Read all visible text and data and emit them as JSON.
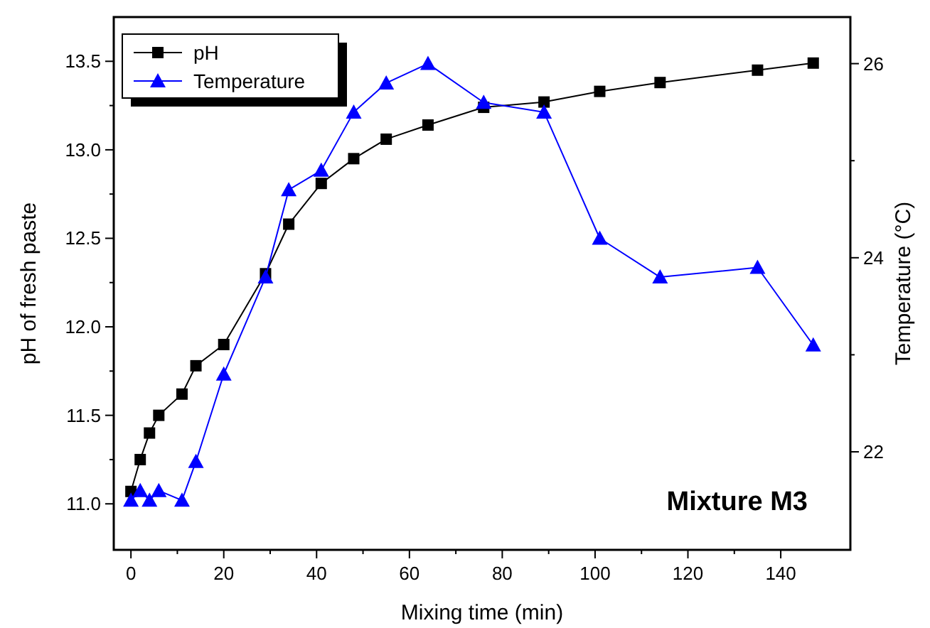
{
  "chart_data": {
    "type": "line",
    "xlabel": "Mixing time (min)",
    "ylabel": "pH of fresh paste",
    "y2label": "Temperature (°C)",
    "annotations": [
      "Mixture M3"
    ],
    "x": [
      0,
      2,
      4,
      6,
      11,
      14,
      20,
      29,
      34,
      41,
      48,
      55,
      64,
      76,
      89,
      101,
      114,
      135,
      147
    ],
    "series": [
      {
        "name": "pH",
        "color": "#000000",
        "marker": "square",
        "values": [
          11.07,
          11.25,
          11.4,
          11.5,
          11.62,
          11.78,
          11.9,
          12.3,
          12.58,
          12.81,
          12.95,
          13.06,
          13.14,
          13.24,
          13.27,
          13.33,
          13.38,
          13.45,
          13.49
        ]
      },
      {
        "name": "Temperature",
        "color": "#0000ff",
        "marker": "triangle",
        "axis": "y2",
        "values": [
          21.5,
          21.6,
          21.5,
          21.6,
          21.5,
          21.9,
          22.8,
          23.8,
          24.7,
          24.9,
          25.5,
          25.8,
          26.0,
          25.6,
          25.5,
          24.2,
          23.8,
          23.9,
          23.1
        ]
      }
    ],
    "xlim": [
      -3.7,
      155
    ],
    "xticks": [
      0,
      20,
      40,
      60,
      80,
      100,
      120,
      140
    ],
    "ylim": [
      10.74,
      13.75
    ],
    "yticks": [
      {
        "value": 11,
        "label": "11.0"
      },
      11.5,
      {
        "value": 12,
        "label": "12.0"
      },
      12.5,
      {
        "value": 13,
        "label": "13.0"
      },
      13.5
    ],
    "y2lim": [
      20.99,
      26.48
    ],
    "y2ticks": [
      22,
      24,
      26
    ],
    "legend": "top left",
    "grid": false
  }
}
